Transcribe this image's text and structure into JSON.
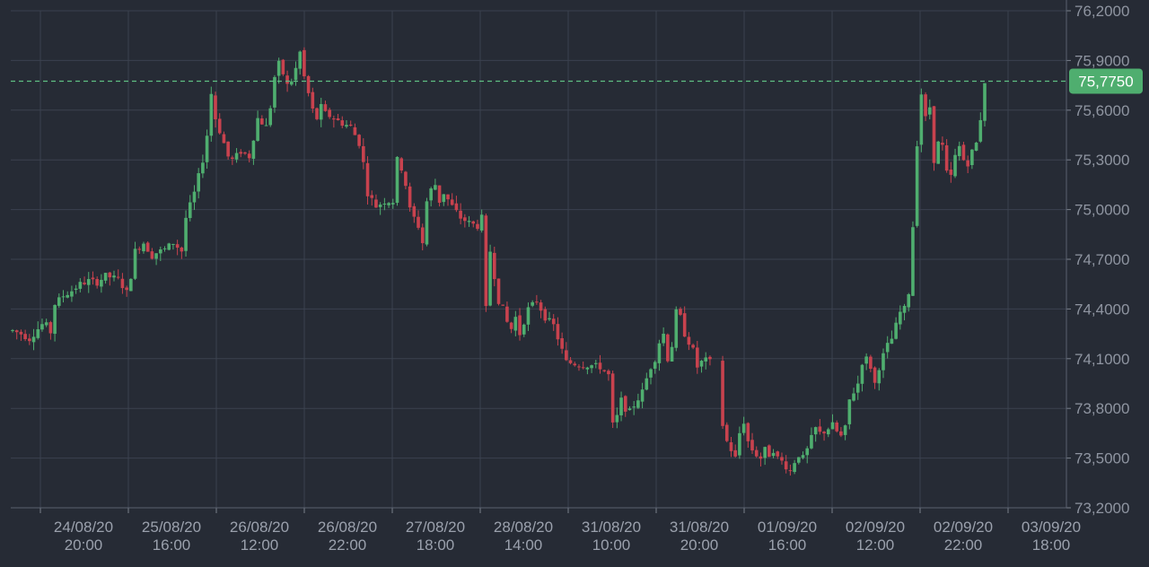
{
  "chart_data": {
    "type": "candlestick",
    "title": "",
    "xlabel": "",
    "ylabel": "",
    "ylim": [
      73.2,
      76.2
    ],
    "y_ticks": [
      "76,2000",
      "75,9000",
      "75,6000",
      "75,3000",
      "75,0000",
      "74,7000",
      "74,4000",
      "74,1000",
      "73,8000",
      "73,5000",
      "73,2000"
    ],
    "y_tick_values": [
      76.2,
      75.9,
      75.6,
      75.3,
      75.0,
      74.7,
      74.4,
      74.1,
      73.8,
      73.5,
      73.2
    ],
    "x_ticks": [
      {
        "date": "24/08/20",
        "time": "20:00"
      },
      {
        "date": "25/08/20",
        "time": "16:00"
      },
      {
        "date": "26/08/20",
        "time": "12:00"
      },
      {
        "date": "26/08/20",
        "time": "22:00"
      },
      {
        "date": "27/08/20",
        "time": "18:00"
      },
      {
        "date": "28/08/20",
        "time": "14:00"
      },
      {
        "date": "31/08/20",
        "time": "10:00"
      },
      {
        "date": "31/08/20",
        "time": "20:00"
      },
      {
        "date": "01/09/20",
        "time": "16:00"
      },
      {
        "date": "02/09/20",
        "time": "12:00"
      },
      {
        "date": "02/09/20",
        "time": "22:00"
      },
      {
        "date": "03/09/20",
        "time": "18:00"
      }
    ],
    "current_price": 75.775,
    "current_price_label": "75,7750",
    "grid": true,
    "colors": {
      "background": "#262b35",
      "up": "#4fae6f",
      "down": "#c8424e",
      "price_line": "#5fbf84",
      "price_badge": "#4fae6f"
    },
    "candle_path": [
      [
        0,
        74.27
      ],
      [
        2,
        74.25
      ],
      [
        4,
        74.22
      ],
      [
        6,
        74.28
      ],
      [
        7.5,
        74.32
      ],
      [
        9,
        74.26
      ],
      [
        10,
        74.43
      ],
      [
        12,
        74.48
      ],
      [
        14,
        74.51
      ],
      [
        16,
        74.55
      ],
      [
        18,
        74.57
      ],
      [
        20,
        74.56
      ],
      [
        22,
        74.6
      ],
      [
        25,
        74.58
      ],
      [
        27,
        74.5
      ],
      [
        28,
        74.6
      ],
      [
        29,
        74.75
      ],
      [
        31,
        74.8
      ],
      [
        33,
        74.72
      ],
      [
        34,
        74.74
      ],
      [
        36,
        74.76
      ],
      [
        38,
        74.8
      ],
      [
        40,
        74.75
      ],
      [
        41,
        74.95
      ],
      [
        43,
        75.1
      ],
      [
        45,
        75.3
      ],
      [
        46,
        75.45
      ],
      [
        47,
        75.7
      ],
      [
        48,
        75.55
      ],
      [
        50,
        75.4
      ],
      [
        51,
        75.32
      ],
      [
        52,
        75.3
      ],
      [
        54,
        75.35
      ],
      [
        56,
        75.32
      ],
      [
        58,
        75.55
      ],
      [
        60,
        75.5
      ],
      [
        61,
        75.62
      ],
      [
        62,
        75.8
      ],
      [
        63,
        75.88
      ],
      [
        64,
        75.82
      ],
      [
        65,
        75.75
      ],
      [
        66,
        75.78
      ],
      [
        67,
        75.85
      ],
      [
        68,
        75.95
      ],
      [
        69,
        75.8
      ],
      [
        70,
        75.7
      ],
      [
        71,
        75.6
      ],
      [
        72,
        75.55
      ],
      [
        73,
        75.62
      ],
      [
        74,
        75.58
      ],
      [
        76,
        75.55
      ],
      [
        78,
        75.52
      ],
      [
        80,
        75.5
      ],
      [
        82,
        75.4
      ],
      [
        83,
        75.28
      ],
      [
        84,
        75.1
      ],
      [
        86,
        75.02
      ],
      [
        88,
        75.05
      ],
      [
        90,
        75.05
      ],
      [
        91,
        75.3
      ],
      [
        92,
        75.25
      ],
      [
        93,
        75.15
      ],
      [
        94,
        75.0
      ],
      [
        96,
        74.9
      ],
      [
        97,
        74.8
      ],
      [
        98,
        75.05
      ],
      [
        99,
        75.12
      ],
      [
        100,
        75.15
      ],
      [
        101,
        75.05
      ],
      [
        102,
        75.1
      ],
      [
        104,
        75.02
      ],
      [
        106,
        74.95
      ],
      [
        108,
        74.92
      ],
      [
        110,
        74.9
      ],
      [
        111,
        74.95
      ],
      [
        112,
        74.4
      ],
      [
        113,
        74.75
      ],
      [
        114,
        74.6
      ],
      [
        115,
        74.45
      ],
      [
        116,
        74.4
      ],
      [
        117,
        74.32
      ],
      [
        118,
        74.28
      ],
      [
        119,
        74.35
      ],
      [
        120,
        74.25
      ],
      [
        122,
        74.4
      ],
      [
        124,
        74.45
      ],
      [
        126,
        74.35
      ],
      [
        128,
        74.3
      ],
      [
        130,
        74.15
      ],
      [
        131,
        74.08
      ],
      [
        133,
        74.07
      ],
      [
        135,
        74.06
      ],
      [
        137,
        74.06
      ],
      [
        139,
        74.05
      ],
      [
        141,
        74.0
      ],
      [
        142,
        73.7
      ],
      [
        143,
        73.75
      ],
      [
        144,
        73.85
      ],
      [
        145,
        73.8
      ],
      [
        146,
        73.78
      ],
      [
        147,
        73.82
      ],
      [
        148,
        73.86
      ],
      [
        149,
        73.9
      ],
      [
        150,
        73.98
      ],
      [
        151,
        74.05
      ],
      [
        152,
        74.1
      ],
      [
        153,
        74.2
      ],
      [
        154,
        74.25
      ],
      [
        155,
        74.1
      ],
      [
        156,
        74.18
      ],
      [
        157,
        74.38
      ],
      [
        158,
        74.35
      ],
      [
        159,
        74.25
      ],
      [
        160,
        74.2
      ],
      [
        161,
        74.15
      ],
      [
        162,
        74.05
      ],
      [
        163,
        74.08
      ],
      [
        164,
        74.09
      ],
      [
        165,
        74.08
      ],
      [
        168,
        73.7
      ],
      [
        169,
        73.6
      ],
      [
        170,
        73.55
      ],
      [
        171,
        73.5
      ],
      [
        172,
        73.65
      ],
      [
        173,
        73.72
      ],
      [
        174,
        73.6
      ],
      [
        175,
        73.55
      ],
      [
        176,
        73.52
      ],
      [
        177,
        73.5
      ],
      [
        178,
        73.55
      ],
      [
        179,
        73.52
      ],
      [
        180,
        73.55
      ],
      [
        181,
        73.5
      ],
      [
        182,
        73.48
      ],
      [
        183,
        73.45
      ],
      [
        184,
        73.42
      ],
      [
        185,
        73.48
      ],
      [
        186,
        73.52
      ],
      [
        187,
        73.5
      ],
      [
        188,
        73.55
      ],
      [
        189,
        73.62
      ],
      [
        190,
        73.68
      ],
      [
        191,
        73.65
      ],
      [
        192,
        73.66
      ],
      [
        193,
        73.68
      ],
      [
        194,
        73.7
      ],
      [
        195,
        73.66
      ],
      [
        196,
        73.63
      ],
      [
        197,
        73.68
      ],
      [
        198,
        73.85
      ],
      [
        199,
        73.9
      ],
      [
        200,
        73.95
      ],
      [
        201,
        74.08
      ],
      [
        202,
        74.1
      ],
      [
        203,
        74.05
      ],
      [
        204,
        73.95
      ],
      [
        205,
        74.05
      ],
      [
        206,
        74.12
      ],
      [
        207,
        74.18
      ],
      [
        208,
        74.22
      ],
      [
        209,
        74.3
      ],
      [
        210,
        74.38
      ],
      [
        211,
        74.4
      ],
      [
        212,
        74.5
      ],
      [
        213,
        74.9
      ],
      [
        214,
        75.4
      ],
      [
        215,
        75.7
      ],
      [
        216,
        75.55
      ],
      [
        217,
        75.62
      ],
      [
        218,
        75.3
      ],
      [
        219,
        75.4
      ],
      [
        220,
        75.38
      ],
      [
        221,
        75.22
      ],
      [
        222,
        75.2
      ],
      [
        223,
        75.32
      ],
      [
        224,
        75.38
      ],
      [
        225,
        75.3
      ],
      [
        226,
        75.28
      ],
      [
        227,
        75.35
      ],
      [
        228,
        75.4
      ],
      [
        229,
        75.55
      ],
      [
        230,
        75.775
      ]
    ]
  }
}
